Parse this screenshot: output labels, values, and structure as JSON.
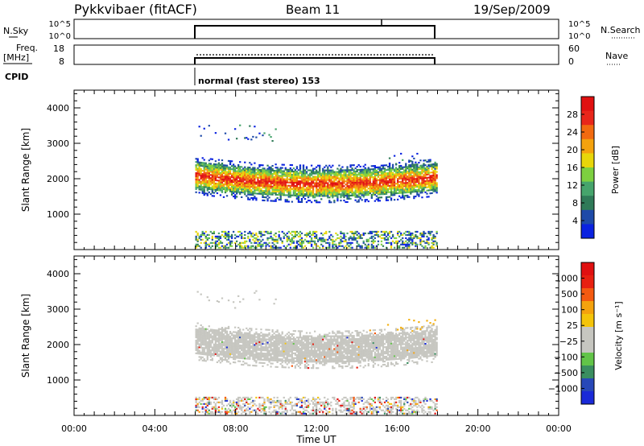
{
  "header": {
    "radar": "Pykkvibaer (fitACF)",
    "beam": "Beam 11",
    "date": "19/Sep/2009"
  },
  "params": {
    "nsky_label": "N.Sky",
    "nsky_ticks": [
      "10^5",
      "10^0"
    ],
    "nsearch_label": "N.Search",
    "freq_label_1": "Freq.",
    "freq_label_2": "[MHz]",
    "freq_ticks": [
      "18",
      "8"
    ],
    "nave_label": "Nave",
    "nave_ticks": [
      "60",
      "0"
    ],
    "cpid_label": "CPID",
    "cpid_value": "normal (fast stereo) 153"
  },
  "colors": {
    "power": [
      "#0a22e0",
      "#1e4aa8",
      "#2f7a58",
      "#46a46c",
      "#7dd040",
      "#e8d60a",
      "#f4a20e",
      "#f26a10",
      "#e8261a",
      "#e01010"
    ],
    "velocity": [
      "#1a2ad8",
      "#2848b8",
      "#3a8e60",
      "#62c448",
      "#c6c6c0",
      "#c6c6c0",
      "#f4c40a",
      "#f4a20e",
      "#f45a10",
      "#e82010",
      "#e01010"
    ]
  },
  "chart_data": [
    {
      "type": "heatmap",
      "panel": "power",
      "ylabel": "Slant Range [km]",
      "ylim": [
        0,
        4500
      ],
      "xlim": [
        0,
        24
      ],
      "yticks": [
        "1000",
        "2000",
        "3000",
        "4000"
      ],
      "colorbar_label": "Power [dB]",
      "colorbar_ticks": [
        "4",
        "8",
        "12",
        "16",
        "20",
        "24",
        "28"
      ]
    },
    {
      "type": "heatmap",
      "panel": "velocity",
      "ylabel": "Slant Range [km]",
      "ylim": [
        0,
        4500
      ],
      "xlim": [
        0,
        24
      ],
      "yticks": [
        "1000",
        "2000",
        "3000",
        "4000"
      ],
      "colorbar_label": "Velocity [m s⁻¹]",
      "colorbar_ticks": [
        "1000",
        "500",
        "100",
        "25",
        "−25",
        "−100",
        "−500",
        "−1000"
      ],
      "xlabel": "Time UT",
      "xticks": [
        "00:00",
        "04:00",
        "08:00",
        "12:00",
        "16:00",
        "20:00",
        "00:00"
      ]
    }
  ]
}
